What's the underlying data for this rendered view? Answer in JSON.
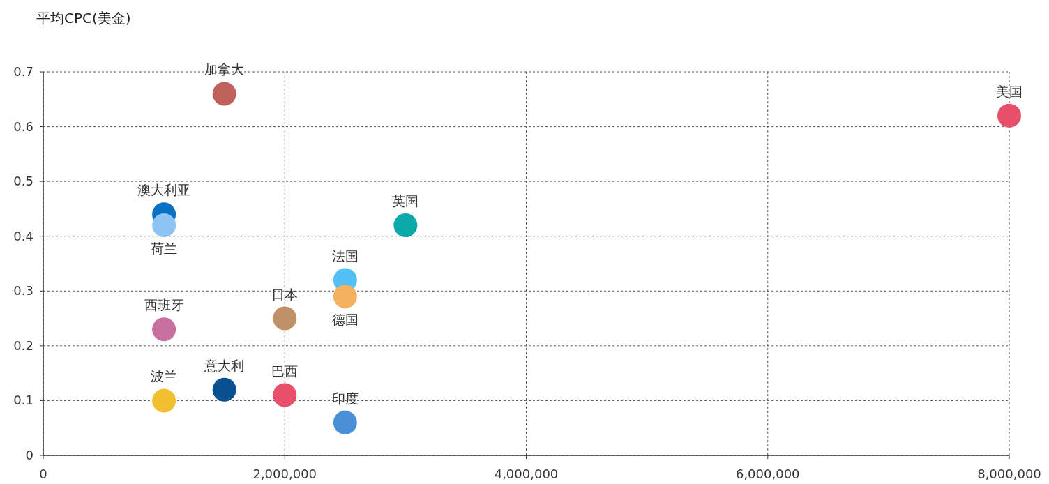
{
  "chart_data": {
    "type": "scatter",
    "ylabel": "平均CPC(美金)",
    "xlim": [
      0,
      8000000
    ],
    "ylim": [
      0,
      0.7
    ],
    "xticks": [
      0,
      {
        "value": 2000000,
        "label": "2,000,000"
      },
      {
        "value": 4000000,
        "label": "4,000,000"
      },
      {
        "value": 6000000,
        "label": "6,000,000"
      },
      {
        "value": 8000000,
        "label": "8,000,000"
      }
    ],
    "yticks": [
      0,
      0.1,
      0.2,
      0.3,
      0.4,
      0.5,
      0.6,
      0.7
    ],
    "grid": true,
    "marker": "circle",
    "series": [
      {
        "name": "美国",
        "color": "#e8506a",
        "x": [
          8000000
        ],
        "values": [
          0.62
        ]
      },
      {
        "name": "加拿大",
        "color": "#c0605a",
        "x": [
          1500000
        ],
        "values": [
          0.66
        ]
      },
      {
        "name": "澳大利亚",
        "color": "#0a6fc0",
        "x": [
          1000000
        ],
        "values": [
          0.44
        ]
      },
      {
        "name": "荷兰",
        "color": "#8ec4f5",
        "x": [
          1000000
        ],
        "values": [
          0.42
        ]
      },
      {
        "name": "英国",
        "color": "#0aa8a8",
        "x": [
          3000000
        ],
        "values": [
          0.42
        ]
      },
      {
        "name": "法国",
        "color": "#50c0f5",
        "x": [
          2500000
        ],
        "values": [
          0.32
        ]
      },
      {
        "name": "德国",
        "color": "#f5b060",
        "x": [
          2500000
        ],
        "values": [
          0.29
        ]
      },
      {
        "name": "日本",
        "color": "#c09068",
        "x": [
          2000000
        ],
        "values": [
          0.25
        ]
      },
      {
        "name": "西班牙",
        "color": "#c870a0",
        "x": [
          1000000
        ],
        "values": [
          0.23
        ]
      },
      {
        "name": "波兰",
        "color": "#f0c030",
        "x": [
          1000000
        ],
        "values": [
          0.1
        ]
      },
      {
        "name": "意大利",
        "color": "#0a5090",
        "x": [
          1500000
        ],
        "values": [
          0.12
        ]
      },
      {
        "name": "巴西",
        "color": "#e8506a",
        "x": [
          2000000
        ],
        "values": [
          0.11
        ]
      },
      {
        "name": "印度",
        "color": "#4a90d8",
        "x": [
          2500000
        ],
        "values": [
          0.06
        ]
      }
    ]
  }
}
